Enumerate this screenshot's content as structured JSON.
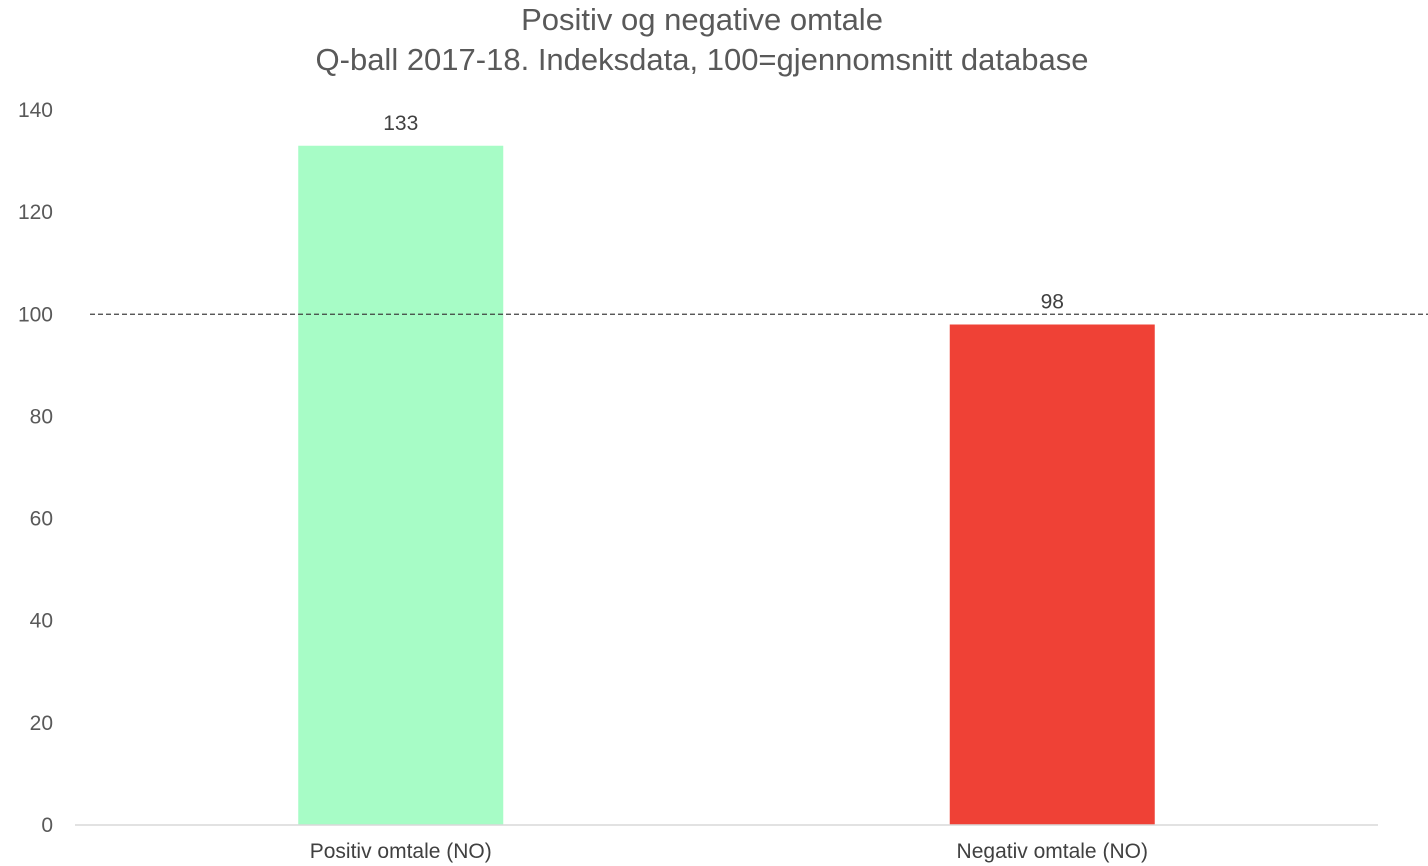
{
  "chart_data": {
    "type": "bar",
    "title": "Positiv og negative omtale",
    "subtitle": "Q-ball 2017-18. Indeksdata, 100=gjennomsnitt database",
    "categories": [
      "Positiv omtale (NO)",
      "Negativ omtale (NO)"
    ],
    "values": [
      133,
      98
    ],
    "bar_colors": [
      "#a7fcc6",
      "#ef4136"
    ],
    "data_labels": [
      "133",
      "98"
    ],
    "ylim": [
      0,
      140
    ],
    "yticks": [
      0,
      20,
      40,
      60,
      80,
      100,
      120,
      140
    ],
    "reference_line": {
      "value": 100,
      "style": "dashed",
      "color": "#404040"
    },
    "axis_color": "#d9d9d9",
    "grid": false,
    "legend": "none"
  }
}
